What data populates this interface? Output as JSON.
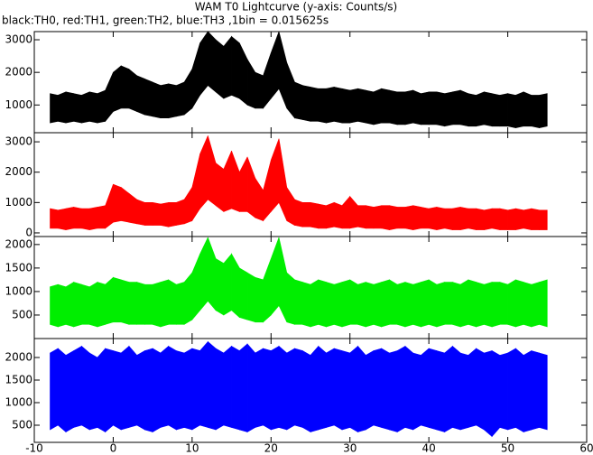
{
  "chart_data": [
    {
      "type": "band",
      "title": "WAM T0 Lightcurve (y-axis: Counts/s)",
      "subtitle": "black:TH0, red:TH1, green:TH2, blue:TH3 ,1bin = 0.015625s",
      "color": "#000000",
      "xlim": [
        -10,
        60
      ],
      "ylim": [
        150,
        3250
      ],
      "yticks": [
        1000,
        2000,
        3000
      ],
      "x": [
        -8,
        -7,
        -6,
        -5,
        -4,
        -3,
        -2,
        -1,
        0,
        1,
        2,
        3,
        4,
        5,
        6,
        7,
        8,
        9,
        10,
        11,
        12,
        13,
        14,
        15,
        16,
        17,
        18,
        19,
        20,
        21,
        22,
        23,
        24,
        25,
        26,
        27,
        28,
        29,
        30,
        31,
        32,
        33,
        34,
        35,
        36,
        37,
        38,
        39,
        40,
        41,
        42,
        43,
        44,
        45,
        46,
        47,
        48,
        49,
        50,
        51,
        52,
        53,
        54,
        55
      ],
      "high": [
        1350,
        1300,
        1400,
        1350,
        1300,
        1400,
        1350,
        1450,
        2000,
        2200,
        2100,
        1900,
        1800,
        1700,
        1600,
        1650,
        1600,
        1700,
        2100,
        2900,
        3250,
        3000,
        2800,
        3100,
        2900,
        2400,
        2000,
        1900,
        2600,
        3250,
        2300,
        1700,
        1600,
        1550,
        1500,
        1500,
        1550,
        1500,
        1450,
        1500,
        1450,
        1400,
        1500,
        1450,
        1400,
        1400,
        1450,
        1350,
        1400,
        1400,
        1350,
        1400,
        1450,
        1350,
        1300,
        1400,
        1350,
        1300,
        1350,
        1300,
        1400,
        1300,
        1300,
        1350
      ],
      "low": [
        450,
        500,
        450,
        500,
        450,
        500,
        450,
        500,
        800,
        900,
        900,
        800,
        700,
        650,
        600,
        600,
        650,
        700,
        900,
        1300,
        1600,
        1400,
        1200,
        1300,
        1200,
        1000,
        900,
        900,
        1200,
        1500,
        900,
        600,
        550,
        500,
        500,
        450,
        500,
        450,
        450,
        500,
        450,
        400,
        450,
        450,
        400,
        400,
        450,
        400,
        400,
        400,
        350,
        400,
        400,
        350,
        350,
        400,
        350,
        350,
        350,
        300,
        350,
        350,
        300,
        350
      ]
    },
    {
      "type": "band",
      "color": "#ff0000",
      "xlim": [
        -10,
        60
      ],
      "ylim": [
        -120,
        3300
      ],
      "yticks": [
        0,
        1000,
        2000,
        3000
      ],
      "x": [
        -8,
        -7,
        -6,
        -5,
        -4,
        -3,
        -2,
        -1,
        0,
        1,
        2,
        3,
        4,
        5,
        6,
        7,
        8,
        9,
        10,
        11,
        12,
        13,
        14,
        15,
        16,
        17,
        18,
        19,
        20,
        21,
        22,
        23,
        24,
        25,
        26,
        27,
        28,
        29,
        30,
        31,
        32,
        33,
        34,
        35,
        36,
        37,
        38,
        39,
        40,
        41,
        42,
        43,
        44,
        45,
        46,
        47,
        48,
        49,
        50,
        51,
        52,
        53,
        54,
        55
      ],
      "high": [
        800,
        750,
        800,
        850,
        800,
        800,
        850,
        900,
        1600,
        1500,
        1300,
        1100,
        1000,
        1000,
        950,
        1000,
        1000,
        1100,
        1500,
        2600,
        3200,
        2300,
        2100,
        2700,
        2000,
        2500,
        1800,
        1400,
        2400,
        3100,
        1500,
        1100,
        1000,
        1000,
        950,
        900,
        1000,
        900,
        1200,
        900,
        900,
        850,
        900,
        900,
        850,
        850,
        900,
        850,
        800,
        850,
        800,
        800,
        850,
        800,
        800,
        750,
        800,
        800,
        750,
        800,
        750,
        800,
        750,
        750
      ],
      "low": [
        150,
        150,
        100,
        150,
        150,
        100,
        150,
        150,
        350,
        400,
        350,
        300,
        250,
        250,
        250,
        200,
        250,
        300,
        400,
        800,
        1100,
        900,
        700,
        800,
        700,
        700,
        500,
        400,
        700,
        1000,
        400,
        250,
        200,
        200,
        150,
        150,
        200,
        150,
        150,
        200,
        150,
        150,
        150,
        100,
        150,
        150,
        100,
        150,
        150,
        100,
        150,
        100,
        100,
        150,
        100,
        100,
        150,
        100,
        100,
        100,
        150,
        100,
        100,
        100
      ]
    },
    {
      "type": "band",
      "color": "#00ee00",
      "xlim": [
        -10,
        60
      ],
      "ylim": [
        0,
        2170
      ],
      "yticks": [
        500,
        1000,
        1500,
        2000
      ],
      "x": [
        -8,
        -7,
        -6,
        -5,
        -4,
        -3,
        -2,
        -1,
        0,
        1,
        2,
        3,
        4,
        5,
        6,
        7,
        8,
        9,
        10,
        11,
        12,
        13,
        14,
        15,
        16,
        17,
        18,
        19,
        20,
        21,
        22,
        23,
        24,
        25,
        26,
        27,
        28,
        29,
        30,
        31,
        32,
        33,
        34,
        35,
        36,
        37,
        38,
        39,
        40,
        41,
        42,
        43,
        44,
        45,
        46,
        47,
        48,
        49,
        50,
        51,
        52,
        53,
        54,
        55
      ],
      "high": [
        1100,
        1150,
        1100,
        1200,
        1150,
        1100,
        1200,
        1150,
        1300,
        1250,
        1200,
        1200,
        1150,
        1150,
        1200,
        1250,
        1150,
        1200,
        1400,
        1800,
        2150,
        1700,
        1600,
        1800,
        1500,
        1400,
        1300,
        1250,
        1700,
        2150,
        1400,
        1250,
        1200,
        1150,
        1250,
        1200,
        1150,
        1200,
        1250,
        1150,
        1200,
        1150,
        1200,
        1250,
        1150,
        1200,
        1150,
        1200,
        1250,
        1150,
        1200,
        1200,
        1150,
        1250,
        1200,
        1150,
        1200,
        1200,
        1150,
        1250,
        1200,
        1150,
        1200,
        1250
      ],
      "low": [
        300,
        250,
        300,
        250,
        300,
        300,
        250,
        300,
        350,
        350,
        300,
        300,
        300,
        300,
        250,
        300,
        300,
        300,
        400,
        600,
        800,
        600,
        500,
        600,
        450,
        400,
        350,
        350,
        500,
        700,
        350,
        300,
        300,
        250,
        300,
        250,
        300,
        250,
        300,
        300,
        250,
        300,
        250,
        300,
        300,
        250,
        300,
        250,
        300,
        250,
        300,
        300,
        250,
        300,
        250,
        300,
        250,
        300,
        300,
        250,
        300,
        250,
        300,
        250
      ]
    },
    {
      "type": "band",
      "color": "#0000ff",
      "xlim": [
        -10,
        60
      ],
      "ylim": [
        120,
        2420
      ],
      "yticks": [
        500,
        1000,
        1500,
        2000
      ],
      "xticks": [
        -10,
        0,
        10,
        20,
        30,
        40,
        50,
        60
      ],
      "x": [
        -8,
        -7,
        -6,
        -5,
        -4,
        -3,
        -2,
        -1,
        0,
        1,
        2,
        3,
        4,
        5,
        6,
        7,
        8,
        9,
        10,
        11,
        12,
        13,
        14,
        15,
        16,
        17,
        18,
        19,
        20,
        21,
        22,
        23,
        24,
        25,
        26,
        27,
        28,
        29,
        30,
        31,
        32,
        33,
        34,
        35,
        36,
        37,
        38,
        39,
        40,
        41,
        42,
        43,
        44,
        45,
        46,
        47,
        48,
        49,
        50,
        51,
        52,
        53,
        54,
        55
      ],
      "high": [
        2100,
        2200,
        2050,
        2150,
        2250,
        2100,
        2000,
        2200,
        2150,
        2100,
        2250,
        2050,
        2150,
        2200,
        2100,
        2250,
        2150,
        2100,
        2200,
        2150,
        2350,
        2200,
        2100,
        2250,
        2150,
        2300,
        2100,
        2200,
        2150,
        2250,
        2100,
        2200,
        2150,
        2050,
        2250,
        2100,
        2200,
        2150,
        2100,
        2250,
        2050,
        2150,
        2200,
        2100,
        2150,
        2250,
        2100,
        2050,
        2200,
        2150,
        2100,
        2250,
        2100,
        2050,
        2200,
        2100,
        2150,
        2050,
        2100,
        2200,
        2050,
        2150,
        2100,
        2050
      ],
      "low": [
        400,
        500,
        350,
        450,
        500,
        400,
        450,
        350,
        500,
        400,
        450,
        500,
        400,
        350,
        450,
        500,
        400,
        450,
        400,
        500,
        450,
        400,
        500,
        450,
        400,
        350,
        450,
        500,
        400,
        450,
        400,
        500,
        450,
        350,
        400,
        450,
        500,
        400,
        450,
        350,
        400,
        500,
        450,
        400,
        350,
        450,
        400,
        500,
        450,
        400,
        350,
        450,
        400,
        450,
        500,
        400,
        250,
        450,
        400,
        450,
        350,
        400,
        450,
        400
      ]
    }
  ]
}
